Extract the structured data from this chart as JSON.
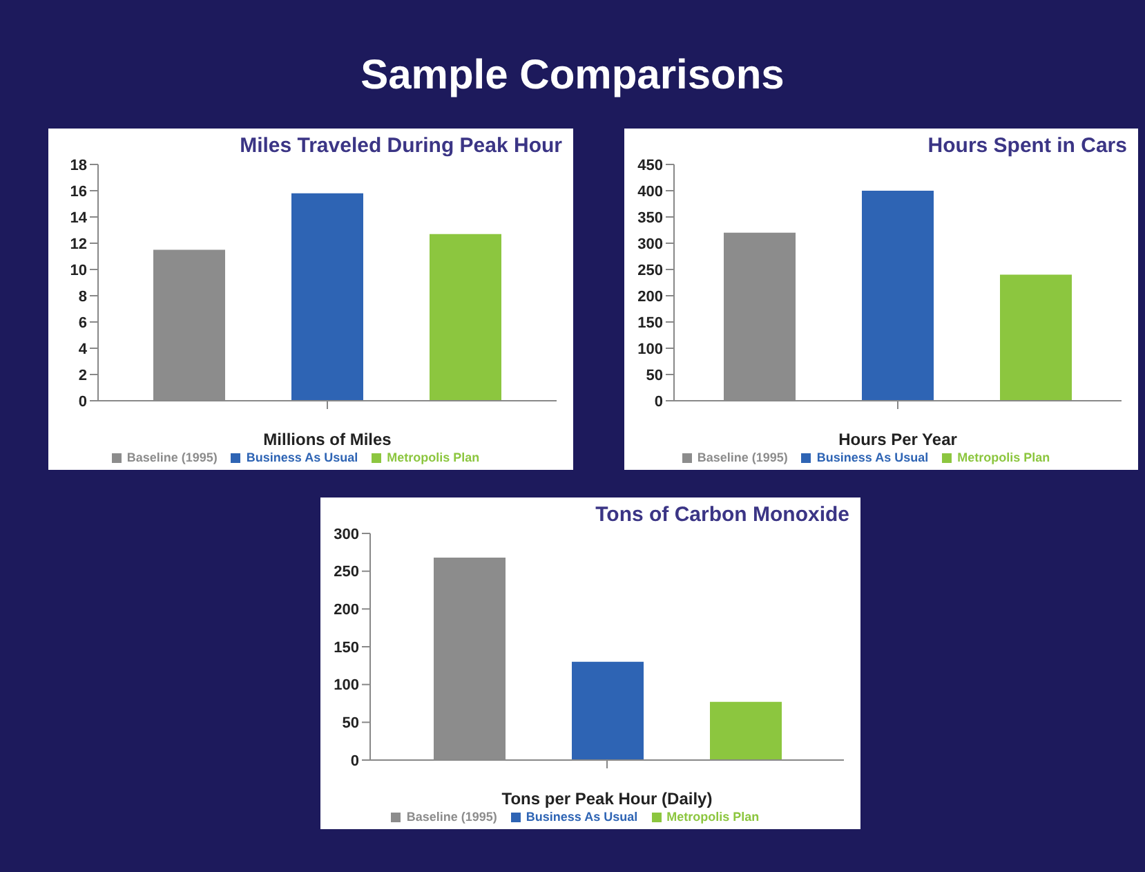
{
  "chart_data": [
    {
      "type": "bar",
      "title": "Miles Traveled During Peak Hour",
      "xlabel": "Millions of Miles",
      "annotations": [
        "Sample Comparisons"
      ],
      "categories": [
        null
      ],
      "ylim": [
        0,
        18
      ],
      "yticks": [
        0,
        2,
        4,
        6,
        8,
        10,
        12,
        14,
        16,
        18
      ],
      "legend": "bottom",
      "grid": false,
      "series": [
        {
          "name": "Baseline (1995)",
          "color": "#8c8c8c",
          "values": [
            11.5
          ]
        },
        {
          "name": "Business As Usual",
          "color": "#2e64b4",
          "values": [
            15.8
          ]
        },
        {
          "name": "Metropolis Plan",
          "color": "#8cc63f",
          "values": [
            12.7
          ]
        }
      ]
    },
    {
      "type": "bar",
      "title": "Hours Spent in Cars",
      "xlabel": "Hours Per Year",
      "categories": [
        null
      ],
      "ylim": [
        0,
        450
      ],
      "yticks": [
        0,
        50,
        100,
        150,
        200,
        250,
        300,
        350,
        400,
        450
      ],
      "legend": "bottom",
      "grid": false,
      "series": [
        {
          "name": "Baseline (1995)",
          "color": "#8c8c8c",
          "values": [
            320
          ]
        },
        {
          "name": "Business As Usual",
          "color": "#2e64b4",
          "values": [
            400
          ]
        },
        {
          "name": "Metropolis Plan",
          "color": "#8cc63f",
          "values": [
            240
          ]
        }
      ]
    },
    {
      "type": "bar",
      "title": "Tons of Carbon Monoxide",
      "xlabel": "Tons per Peak Hour (Daily)",
      "categories": [
        null
      ],
      "ylim": [
        0,
        300
      ],
      "yticks": [
        0,
        50,
        100,
        150,
        200,
        250,
        300
      ],
      "legend": "bottom",
      "grid": false,
      "series": [
        {
          "name": "Baseline (1995)",
          "color": "#8c8c8c",
          "values": [
            268
          ]
        },
        {
          "name": "Business As Usual",
          "color": "#2e64b4",
          "values": [
            130
          ]
        },
        {
          "name": "Metropolis Plan",
          "color": "#8cc63f",
          "values": [
            77
          ]
        }
      ]
    }
  ]
}
